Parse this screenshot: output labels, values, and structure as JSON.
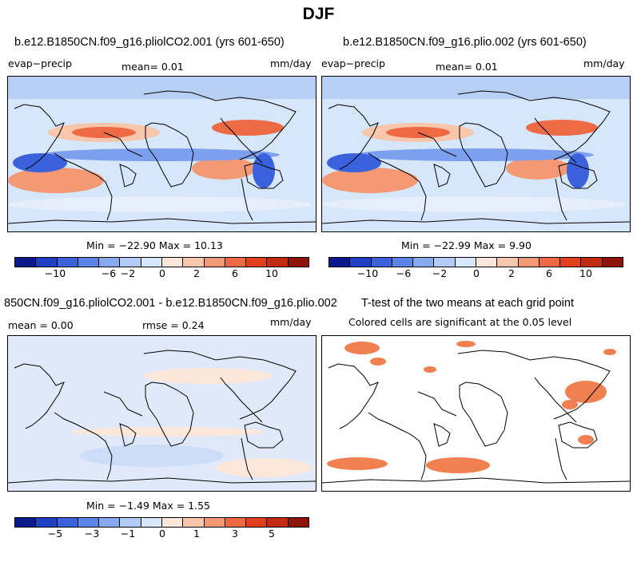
{
  "title": "DJF",
  "panels": {
    "p1": {
      "title": "b.e12.B1850CN.f09_g16.pliolCO2.001 (yrs 601-650)",
      "left": "evap−precip",
      "center": "mean=    0.01",
      "right": "mm/day",
      "minmax": "Min = −22.90 Max =   10.13"
    },
    "p2": {
      "title": "b.e12.B1850CN.f09_g16.plio.002 (yrs 601-650)",
      "left": "evap−precip",
      "center": "mean=    0.01",
      "right": "mm/day",
      "minmax": "Min = −22.99 Max =    9.90"
    },
    "p3": {
      "title": "850CN.f09_g16.pliolCO2.001 - b.e12.B1850CN.f09_g16.plio.002",
      "left": "mean =    0.00",
      "center": "rmse =    0.24",
      "right": "mm/day",
      "minmax": "Min =  −1.49 Max =    1.55"
    },
    "p4": {
      "title": "T-test of the two means at each grid point",
      "subtitle": "Colored cells are significant at the 0.05 level"
    }
  },
  "colorbars": {
    "top_labels": [
      "−10",
      "−6",
      "−2",
      "0",
      "2",
      "6",
      "10"
    ],
    "diff_labels": [
      "−5",
      "−3",
      "−1",
      "0",
      "1",
      "3",
      "5"
    ],
    "colors": [
      "#0a1a8c",
      "#1f3fc4",
      "#3a62dc",
      "#5c85ea",
      "#86a9f1",
      "#b3cbf7",
      "#d8e8fb",
      "#fde7da",
      "#f8c6aa",
      "#f39a74",
      "#ee6a44",
      "#e2401c",
      "#c52a12",
      "#8e1308"
    ]
  }
}
